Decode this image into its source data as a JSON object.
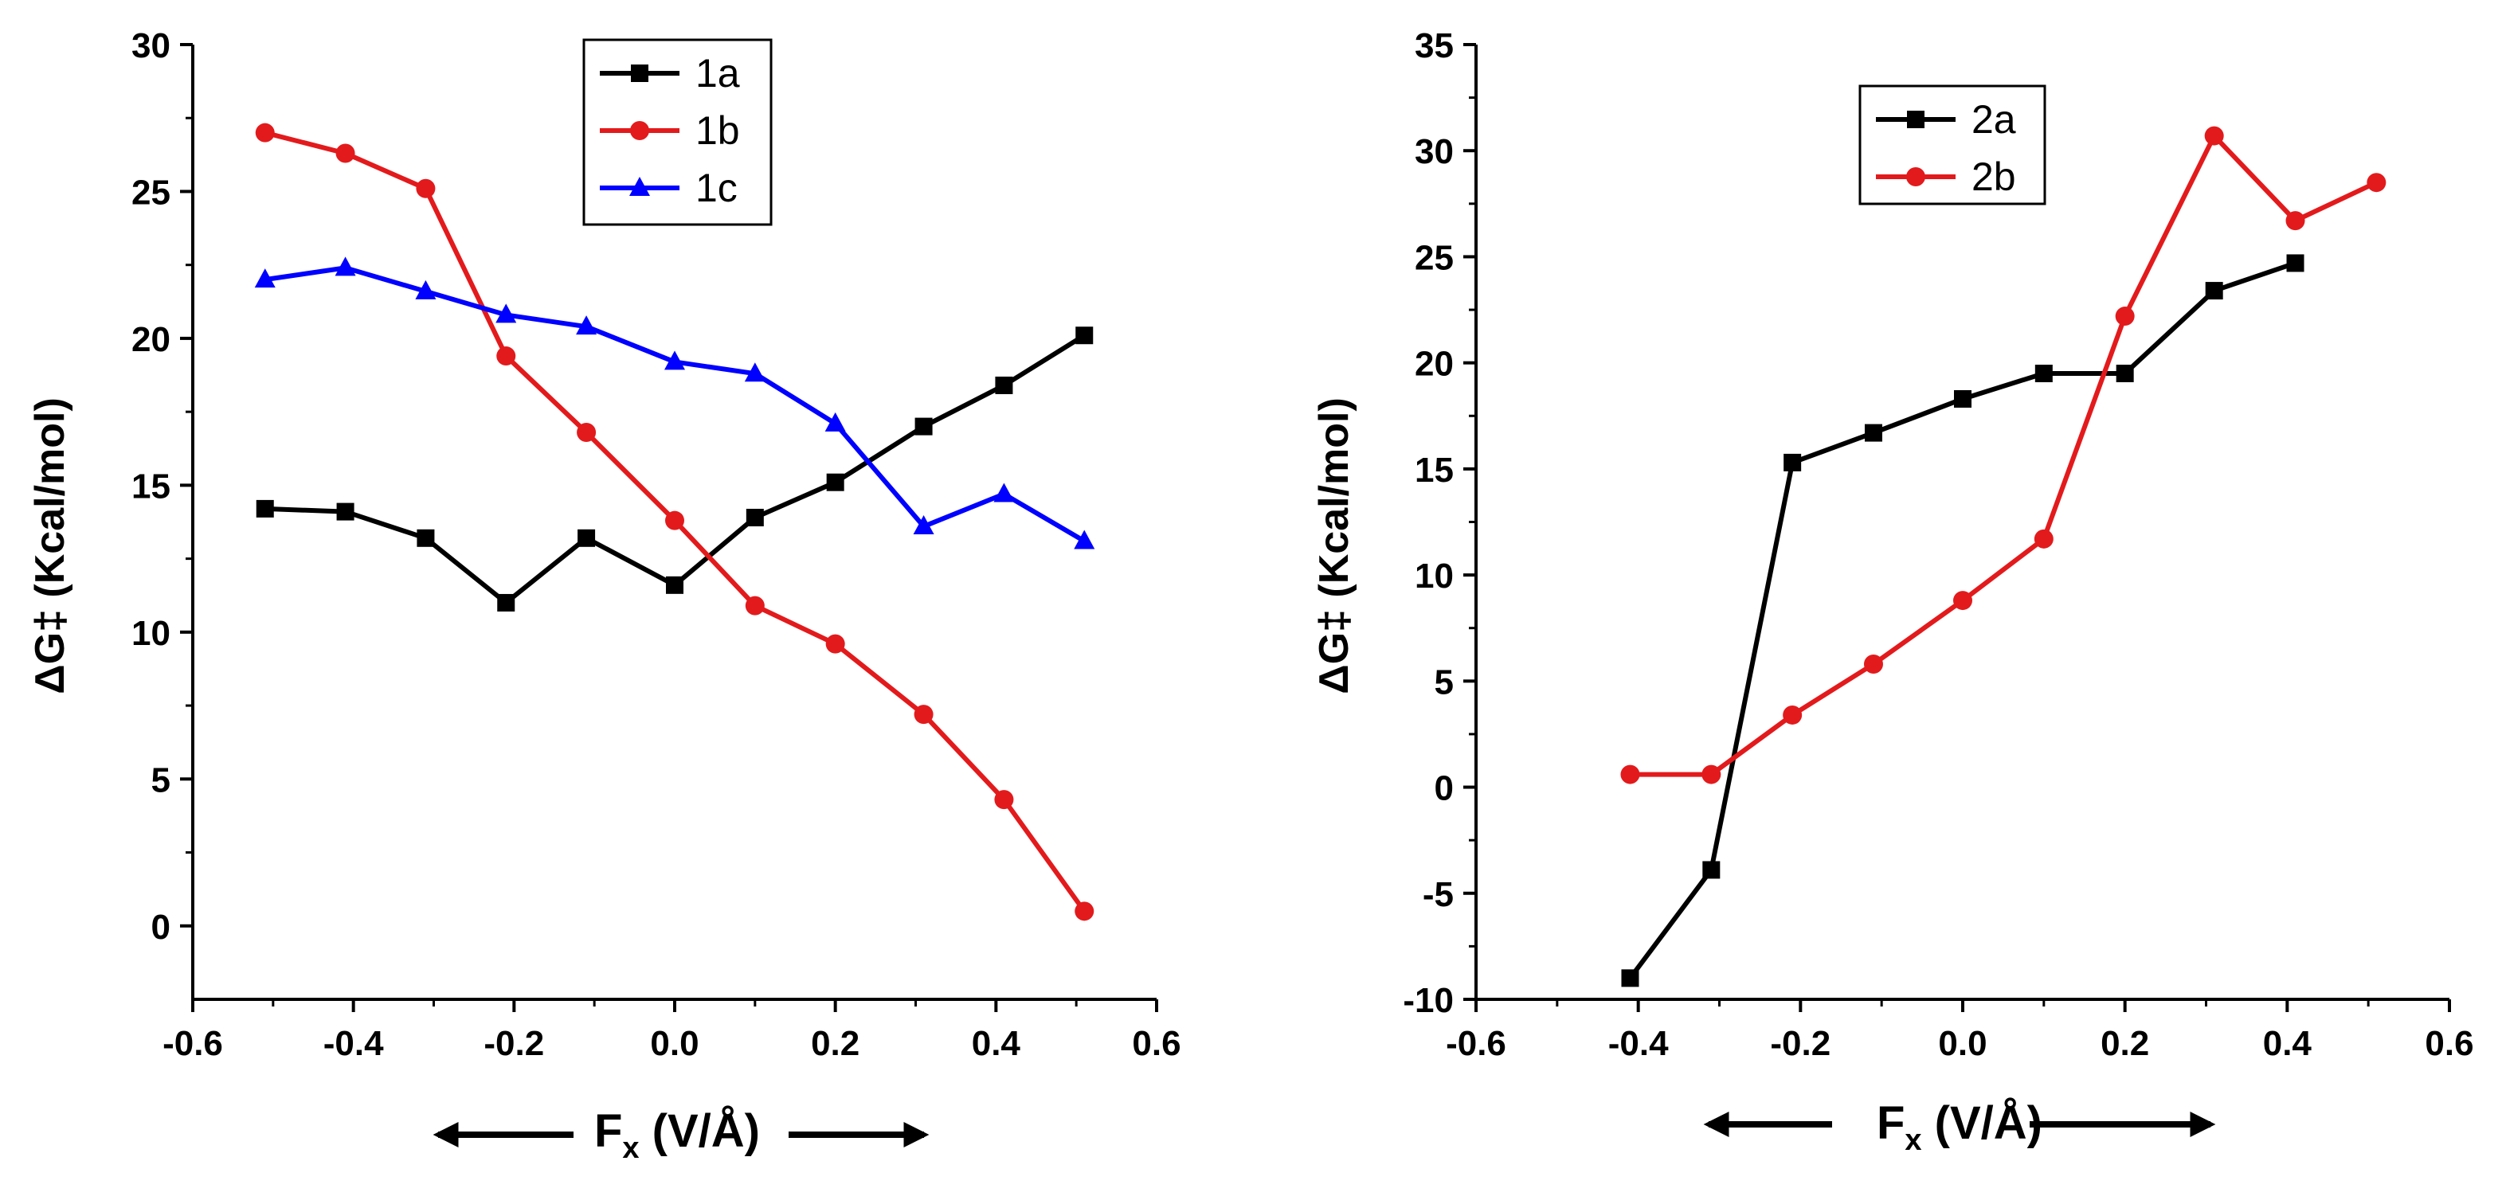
{
  "chart_data": [
    {
      "type": "line",
      "ylabel": "ΔG‡ (Kcal/mol)",
      "xlabel": "Fx (V/Å)",
      "xlabel_main": "F",
      "xlabel_sub": "x",
      "xlabel_rest": " (V/Å)",
      "xlim": [
        -0.6,
        0.6
      ],
      "ylim": [
        -2.5,
        30
      ],
      "xticks": [
        -0.6,
        -0.4,
        -0.2,
        0.0,
        0.2,
        0.4,
        0.6
      ],
      "xtick_labels": [
        "-0.6",
        "-0.4",
        "-0.2",
        "0.0",
        "0.2",
        "0.4",
        "0.6"
      ],
      "yticks": [
        0,
        5,
        10,
        15,
        20,
        25,
        30
      ],
      "ytick_labels": [
        "0",
        "5",
        "10",
        "15",
        "20",
        "25",
        "30"
      ],
      "legend_position": "top-center",
      "x": [
        -0.51,
        -0.41,
        -0.31,
        -0.21,
        -0.11,
        0.0,
        0.1,
        0.2,
        0.31,
        0.41,
        0.51
      ],
      "series": [
        {
          "name": "1a",
          "color": "#000000",
          "marker": "square",
          "values": [
            14.2,
            14.1,
            13.2,
            11.0,
            13.2,
            11.6,
            13.9,
            15.1,
            17.0,
            18.4,
            20.1
          ]
        },
        {
          "name": "1b",
          "color": "#e31a1c",
          "marker": "circle",
          "values": [
            27.0,
            26.3,
            25.1,
            19.4,
            16.8,
            13.8,
            10.9,
            9.6,
            7.2,
            4.3,
            0.5
          ]
        },
        {
          "name": "1c",
          "color": "#0000ff",
          "marker": "triangle",
          "values": [
            22.0,
            22.4,
            21.6,
            20.8,
            20.4,
            19.2,
            18.8,
            17.1,
            13.6,
            14.7,
            13.1
          ]
        }
      ]
    },
    {
      "type": "line",
      "ylabel": "ΔG‡ (Kcal/mol)",
      "xlabel": "Fx (V/Å)",
      "xlabel_main": "F",
      "xlabel_sub": "x",
      "xlabel_rest": " (V/Å)",
      "xlim": [
        -0.6,
        0.6
      ],
      "ylim": [
        -10,
        35
      ],
      "xticks": [
        -0.6,
        -0.4,
        -0.2,
        0.0,
        0.2,
        0.4,
        0.6
      ],
      "xtick_labels": [
        "-0.6",
        "-0.4",
        "-0.2",
        "0.0",
        "0.2",
        "0.4",
        "0.6"
      ],
      "yticks": [
        -10,
        -5,
        0,
        5,
        10,
        15,
        20,
        25,
        30,
        35
      ],
      "ytick_labels": [
        "-10",
        "-5",
        "0",
        "5",
        "10",
        "15",
        "20",
        "25",
        "30",
        "35"
      ],
      "legend_position": "top-center",
      "series": [
        {
          "name": "2a",
          "color": "#000000",
          "marker": "square",
          "x": [
            -0.41,
            -0.31,
            -0.21,
            -0.11,
            0.0,
            0.1,
            0.2,
            0.31,
            0.41
          ],
          "values": [
            -9.0,
            -3.9,
            15.3,
            16.7,
            18.3,
            19.5,
            19.5,
            23.4,
            24.7
          ]
        },
        {
          "name": "2b",
          "color": "#e31a1c",
          "marker": "circle",
          "x": [
            -0.41,
            -0.31,
            -0.21,
            -0.11,
            0.0,
            0.1,
            0.2,
            0.31,
            0.41,
            0.51
          ],
          "values": [
            0.6,
            0.6,
            3.4,
            5.8,
            8.8,
            11.7,
            22.2,
            30.7,
            26.7,
            28.5
          ]
        }
      ]
    }
  ]
}
